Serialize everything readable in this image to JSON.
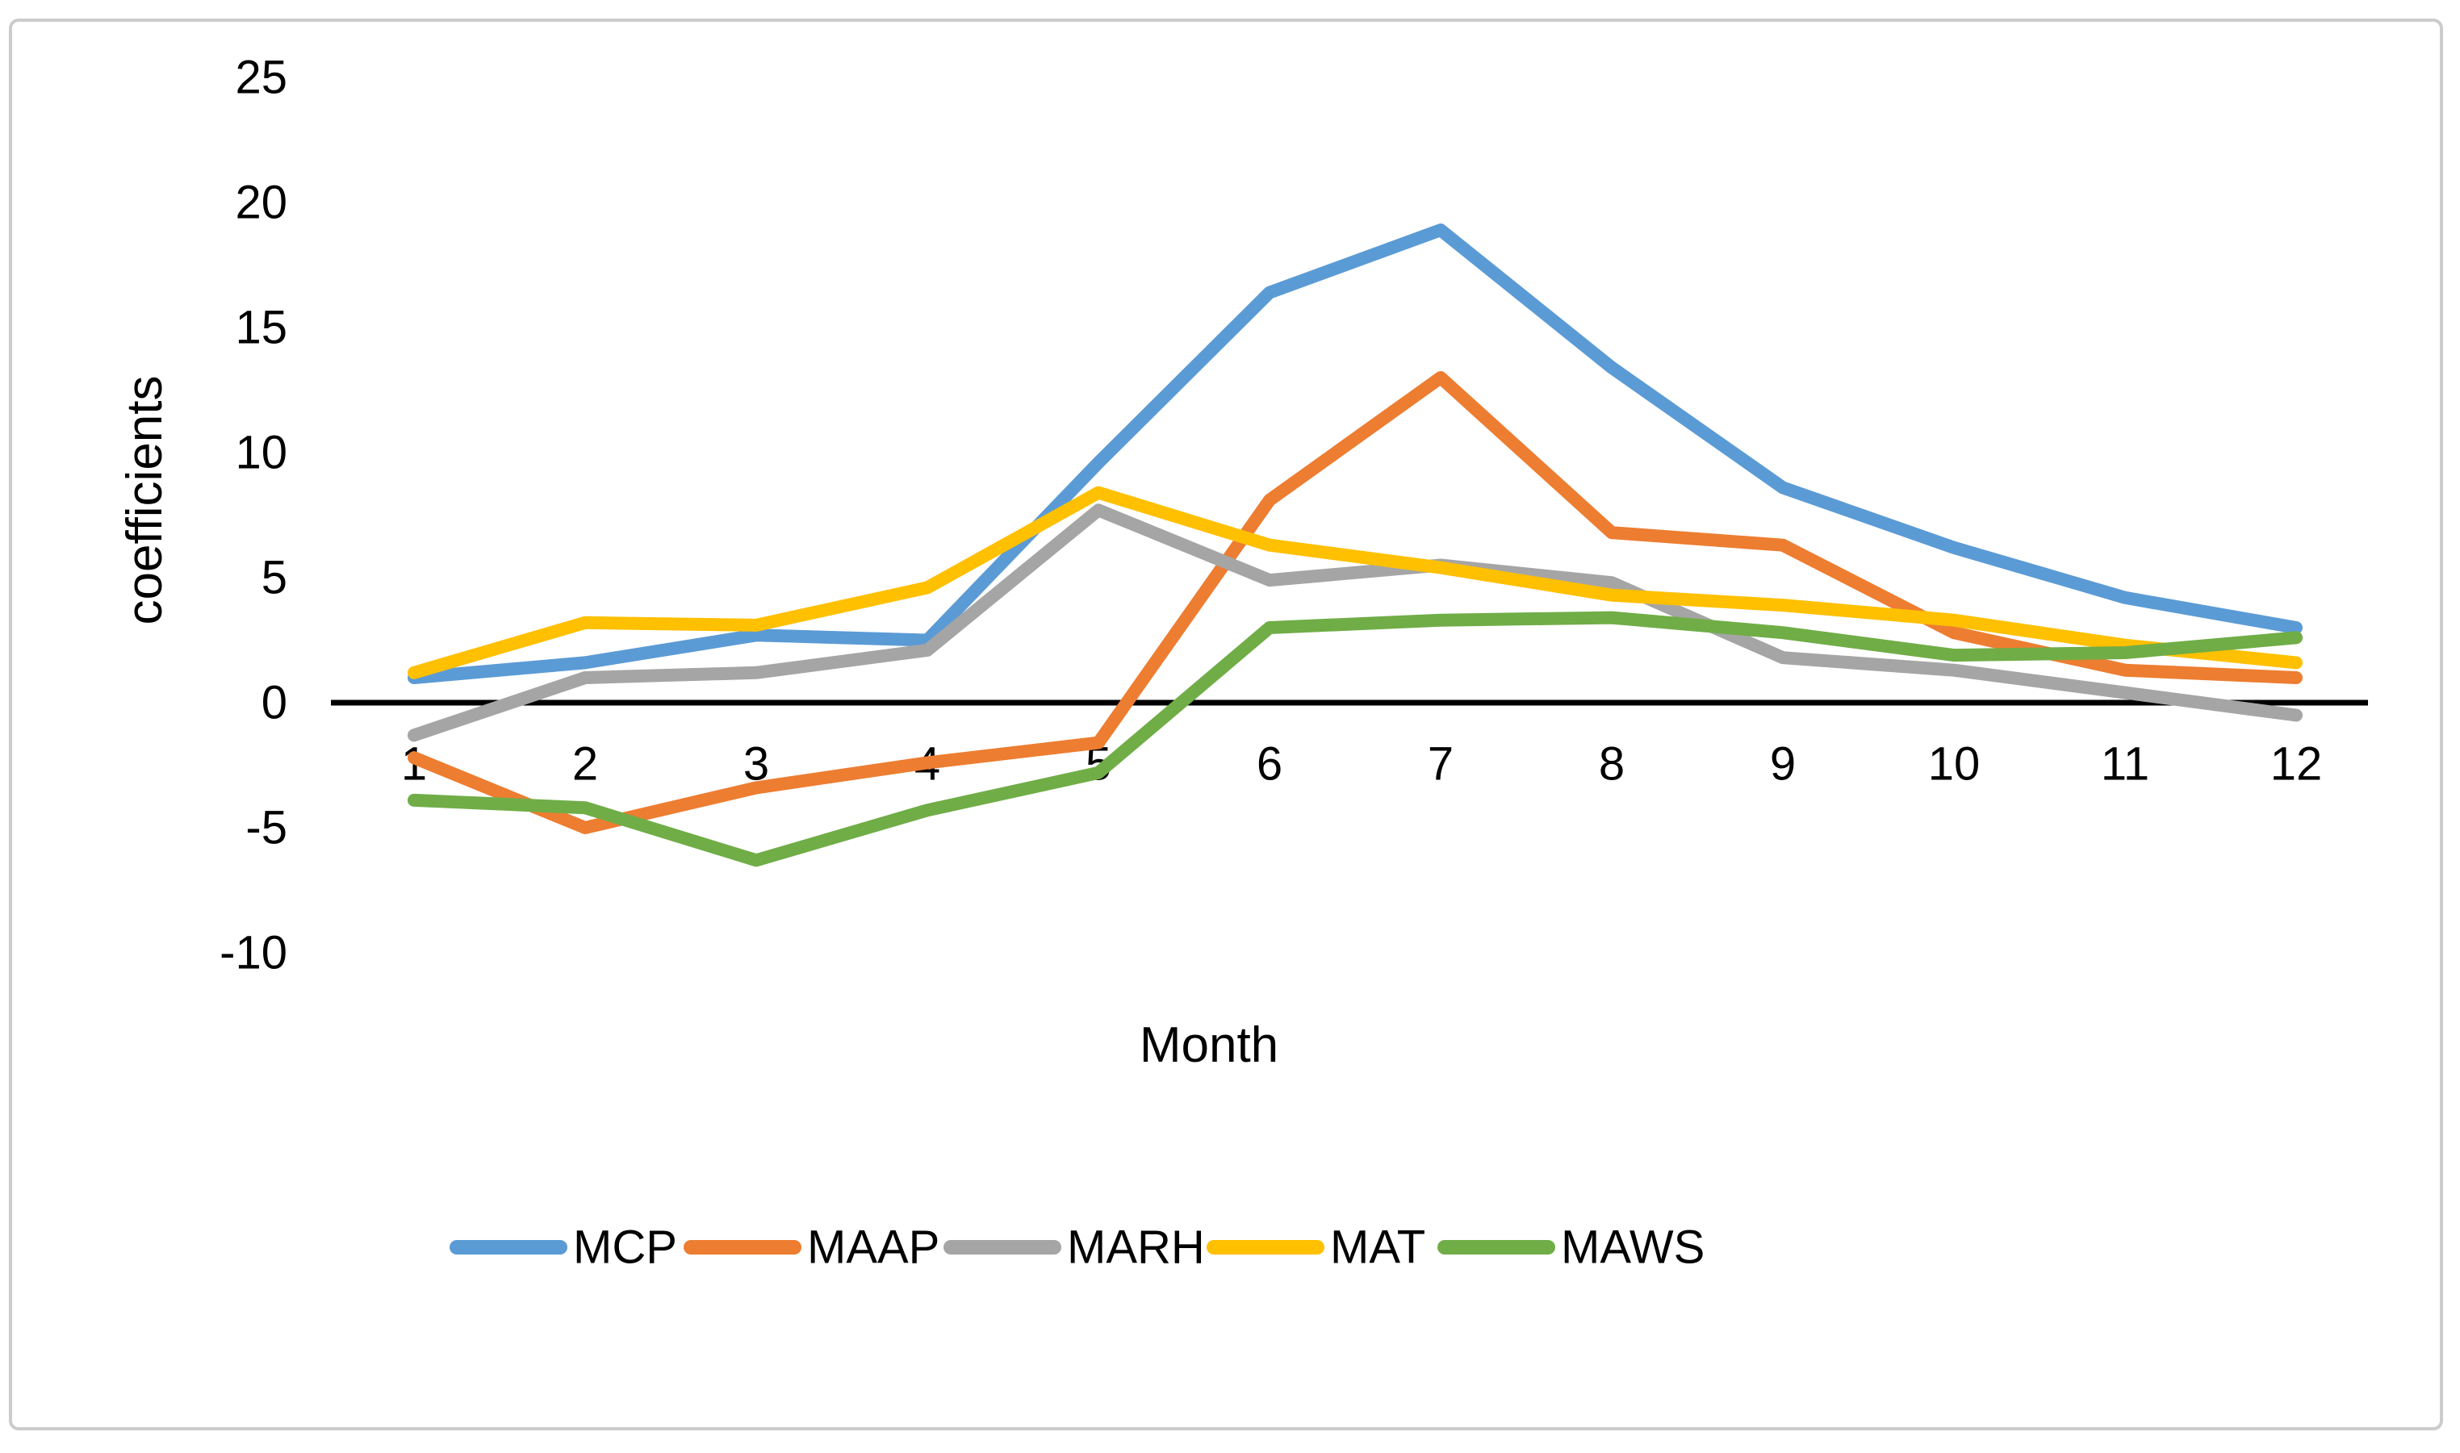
{
  "chart_data": {
    "type": "line",
    "title": "",
    "xlabel": "Month",
    "ylabel": "coefficients",
    "x": [
      1,
      2,
      3,
      4,
      5,
      6,
      7,
      8,
      9,
      10,
      11,
      12
    ],
    "y_ticks": [
      25,
      20,
      15,
      10,
      5,
      0,
      -5,
      -10
    ],
    "ylim": [
      -10,
      25
    ],
    "grid": false,
    "legend_position": "bottom",
    "zero_axis_color": "#000000",
    "frame_border_color": "#cccccc",
    "series": [
      {
        "name": "MCP",
        "color": "#5B9BD5",
        "values": [
          1.0,
          1.6,
          2.7,
          2.5,
          9.6,
          16.4,
          18.9,
          13.4,
          8.6,
          6.2,
          4.2,
          3.0
        ]
      },
      {
        "name": "MAAP",
        "color": "#ED7D31",
        "values": [
          -2.2,
          -5.0,
          -3.4,
          -2.4,
          -1.6,
          8.1,
          13.0,
          6.8,
          6.3,
          2.8,
          1.3,
          1.0
        ]
      },
      {
        "name": "MARH",
        "color": "#A5A5A5",
        "values": [
          -1.3,
          1.0,
          1.2,
          2.1,
          7.7,
          4.9,
          5.5,
          4.8,
          1.8,
          1.3,
          0.4,
          -0.5
        ]
      },
      {
        "name": "MAT",
        "color": "#FFC000",
        "values": [
          1.2,
          3.2,
          3.1,
          4.6,
          8.4,
          6.3,
          5.4,
          4.3,
          3.9,
          3.3,
          2.3,
          1.6
        ]
      },
      {
        "name": "MAWS",
        "color": "#70AD47",
        "values": [
          -3.9,
          -4.2,
          -6.3,
          -4.3,
          -2.8,
          3.0,
          3.3,
          3.4,
          2.8,
          1.9,
          2.0,
          2.6
        ]
      }
    ]
  }
}
